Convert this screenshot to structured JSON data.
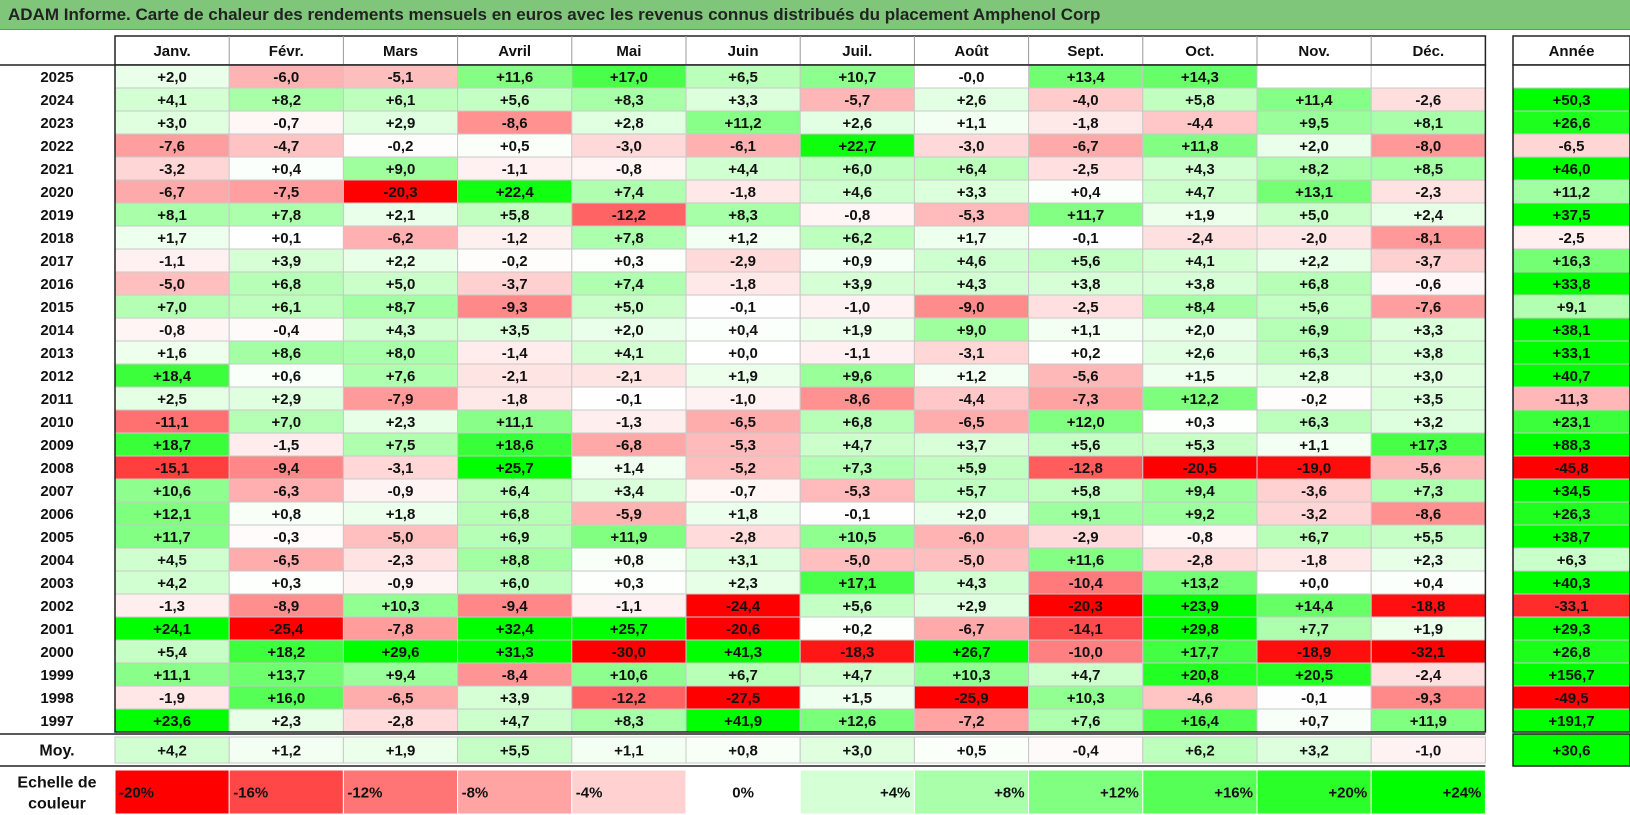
{
  "title": "ADAM Informe. Carte de chaleur des rendements mensuels en euros avec les revenus connus distribués du placement Amphenol Corp",
  "chart_data": {
    "type": "heatmap",
    "columns": [
      "Janv.",
      "Févr.",
      "Mars",
      "Avril",
      "Mai",
      "Juin",
      "Juil.",
      "Août",
      "Sept.",
      "Oct.",
      "Nov.",
      "Déc."
    ],
    "year_header": "Année",
    "rows": [
      {
        "year": "2025",
        "values": [
          "+2,0",
          "-6,0",
          "-5,1",
          "+11,6",
          "+17,0",
          "+6,5",
          "+10,7",
          "-0,0",
          "+13,4",
          "+14,3",
          "",
          ""
        ],
        "annual": ""
      },
      {
        "year": "2024",
        "values": [
          "+4,1",
          "+8,2",
          "+6,1",
          "+5,6",
          "+8,3",
          "+3,3",
          "-5,7",
          "+2,6",
          "-4,0",
          "+5,8",
          "+11,4",
          "-2,6"
        ],
        "annual": "+50,3"
      },
      {
        "year": "2023",
        "values": [
          "+3,0",
          "-0,7",
          "+2,9",
          "-8,6",
          "+2,8",
          "+11,2",
          "+2,6",
          "+1,1",
          "-1,8",
          "-4,4",
          "+9,5",
          "+8,1"
        ],
        "annual": "+26,6"
      },
      {
        "year": "2022",
        "values": [
          "-7,6",
          "-4,7",
          "-0,2",
          "+0,5",
          "-3,0",
          "-6,1",
          "+22,7",
          "-3,0",
          "-6,7",
          "+11,8",
          "+2,0",
          "-8,0"
        ],
        "annual": "-6,5"
      },
      {
        "year": "2021",
        "values": [
          "-3,2",
          "+0,4",
          "+9,0",
          "-1,1",
          "-0,8",
          "+4,4",
          "+6,0",
          "+6,4",
          "-2,5",
          "+4,3",
          "+8,2",
          "+8,5"
        ],
        "annual": "+46,0"
      },
      {
        "year": "2020",
        "values": [
          "-6,7",
          "-7,5",
          "-20,3",
          "+22,4",
          "+7,4",
          "-1,8",
          "+4,6",
          "+3,3",
          "+0,4",
          "+4,7",
          "+13,1",
          "-2,3"
        ],
        "annual": "+11,2"
      },
      {
        "year": "2019",
        "values": [
          "+8,1",
          "+7,8",
          "+2,1",
          "+5,8",
          "-12,2",
          "+8,3",
          "-0,8",
          "-5,3",
          "+11,7",
          "+1,9",
          "+5,0",
          "+2,4"
        ],
        "annual": "+37,5"
      },
      {
        "year": "2018",
        "values": [
          "+1,7",
          "+0,1",
          "-6,2",
          "-1,2",
          "+7,8",
          "+1,2",
          "+6,2",
          "+1,7",
          "-0,1",
          "-2,4",
          "-2,0",
          "-8,1"
        ],
        "annual": "-2,5"
      },
      {
        "year": "2017",
        "values": [
          "-1,1",
          "+3,9",
          "+2,2",
          "-0,2",
          "+0,3",
          "-2,9",
          "+0,9",
          "+4,6",
          "+5,6",
          "+4,1",
          "+2,2",
          "-3,7"
        ],
        "annual": "+16,3"
      },
      {
        "year": "2016",
        "values": [
          "-5,0",
          "+6,8",
          "+5,0",
          "-3,7",
          "+7,4",
          "-1,8",
          "+3,9",
          "+4,3",
          "+3,8",
          "+3,8",
          "+6,8",
          "-0,6"
        ],
        "annual": "+33,8"
      },
      {
        "year": "2015",
        "values": [
          "+7,0",
          "+6,1",
          "+8,7",
          "-9,3",
          "+5,0",
          "-0,1",
          "-1,0",
          "-9,0",
          "-2,5",
          "+8,4",
          "+5,6",
          "-7,6"
        ],
        "annual": "+9,1"
      },
      {
        "year": "2014",
        "values": [
          "-0,8",
          "-0,4",
          "+4,3",
          "+3,5",
          "+2,0",
          "+0,4",
          "+1,9",
          "+9,0",
          "+1,1",
          "+2,0",
          "+6,9",
          "+3,3"
        ],
        "annual": "+38,1"
      },
      {
        "year": "2013",
        "values": [
          "+1,6",
          "+8,6",
          "+8,0",
          "-1,4",
          "+4,1",
          "+0,0",
          "-1,1",
          "-3,1",
          "+0,2",
          "+2,6",
          "+6,3",
          "+3,8"
        ],
        "annual": "+33,1"
      },
      {
        "year": "2012",
        "values": [
          "+18,4",
          "+0,6",
          "+7,6",
          "-2,1",
          "-2,1",
          "+1,9",
          "+9,6",
          "+1,2",
          "-5,6",
          "+1,5",
          "+2,8",
          "+3,0"
        ],
        "annual": "+40,7"
      },
      {
        "year": "2011",
        "values": [
          "+2,5",
          "+2,9",
          "-7,9",
          "-1,8",
          "-0,1",
          "-1,0",
          "-8,6",
          "-4,4",
          "-7,3",
          "+12,2",
          "-0,2",
          "+3,5"
        ],
        "annual": "-11,3"
      },
      {
        "year": "2010",
        "values": [
          "-11,1",
          "+7,0",
          "+2,3",
          "+11,1",
          "-1,3",
          "-6,5",
          "+6,8",
          "-6,5",
          "+12,0",
          "+0,3",
          "+6,3",
          "+3,2"
        ],
        "annual": "+23,1"
      },
      {
        "year": "2009",
        "values": [
          "+18,7",
          "-1,5",
          "+7,5",
          "+18,6",
          "-6,8",
          "-5,3",
          "+4,7",
          "+3,7",
          "+5,6",
          "+5,3",
          "+1,1",
          "+17,3"
        ],
        "annual": "+88,3"
      },
      {
        "year": "2008",
        "values": [
          "-15,1",
          "-9,4",
          "-3,1",
          "+25,7",
          "+1,4",
          "-5,2",
          "+7,3",
          "+5,9",
          "-12,8",
          "-20,5",
          "-19,0",
          "-5,6"
        ],
        "annual": "-45,8"
      },
      {
        "year": "2007",
        "values": [
          "+10,6",
          "-6,3",
          "-0,9",
          "+6,4",
          "+3,4",
          "-0,7",
          "-5,3",
          "+5,7",
          "+5,8",
          "+9,4",
          "-3,6",
          "+7,3"
        ],
        "annual": "+34,5"
      },
      {
        "year": "2006",
        "values": [
          "+12,1",
          "+0,8",
          "+1,8",
          "+6,8",
          "-5,9",
          "+1,8",
          "-0,1",
          "+2,0",
          "+9,1",
          "+9,2",
          "-3,2",
          "-8,6"
        ],
        "annual": "+26,3"
      },
      {
        "year": "2005",
        "values": [
          "+11,7",
          "-0,3",
          "-5,0",
          "+6,9",
          "+11,9",
          "-2,8",
          "+10,5",
          "-6,0",
          "-2,9",
          "-0,8",
          "+6,7",
          "+5,5"
        ],
        "annual": "+38,7"
      },
      {
        "year": "2004",
        "values": [
          "+4,5",
          "-6,5",
          "-2,3",
          "+8,8",
          "+0,8",
          "+3,1",
          "-5,0",
          "-5,0",
          "+11,6",
          "-2,8",
          "-1,8",
          "+2,3"
        ],
        "annual": "+6,3"
      },
      {
        "year": "2003",
        "values": [
          "+4,2",
          "+0,3",
          "-0,9",
          "+6,0",
          "+0,3",
          "+2,3",
          "+17,1",
          "+4,3",
          "-10,4",
          "+13,2",
          "+0,0",
          "+0,4"
        ],
        "annual": "+40,3"
      },
      {
        "year": "2002",
        "values": [
          "-1,3",
          "-8,9",
          "+10,3",
          "-9,4",
          "-1,1",
          "-24,4",
          "+5,6",
          "+2,9",
          "-20,3",
          "+23,9",
          "+14,4",
          "-18,8"
        ],
        "annual": "-33,1"
      },
      {
        "year": "2001",
        "values": [
          "+24,1",
          "-25,4",
          "-7,8",
          "+32,4",
          "+25,7",
          "-20,6",
          "+0,2",
          "-6,7",
          "-14,1",
          "+29,8",
          "+7,7",
          "+1,9"
        ],
        "annual": "+29,3"
      },
      {
        "year": "2000",
        "values": [
          "+5,4",
          "+18,2",
          "+29,6",
          "+31,3",
          "-30,0",
          "+41,3",
          "-18,3",
          "+26,7",
          "-10,0",
          "+17,7",
          "-18,9",
          "-32,1"
        ],
        "annual": "+26,8"
      },
      {
        "year": "1999",
        "values": [
          "+11,1",
          "+13,7",
          "+9,4",
          "-8,4",
          "+10,6",
          "+6,7",
          "+4,7",
          "+10,3",
          "+4,7",
          "+20,8",
          "+20,5",
          "-2,4"
        ],
        "annual": "+156,7"
      },
      {
        "year": "1998",
        "values": [
          "-1,9",
          "+16,0",
          "-6,5",
          "+3,9",
          "-12,2",
          "-27,5",
          "+1,5",
          "-25,9",
          "+10,3",
          "-4,6",
          "-0,1",
          "-9,3"
        ],
        "annual": "-49,5"
      },
      {
        "year": "1997",
        "values": [
          "+23,6",
          "+2,3",
          "-2,8",
          "+4,7",
          "+8,3",
          "+41,9",
          "+12,6",
          "-7,2",
          "+7,6",
          "+16,4",
          "+0,7",
          "+11,9"
        ],
        "annual": "+191,7"
      }
    ],
    "average": {
      "label": "Moy.",
      "values": [
        "+4,2",
        "+1,2",
        "+1,9",
        "+5,5",
        "+1,1",
        "+0,8",
        "+3,0",
        "+0,5",
        "-0,4",
        "+6,2",
        "+3,2",
        "-1,0"
      ],
      "annual": "+30,6"
    },
    "scale": {
      "label_line1": "Echelle de",
      "label_line2": "couleur",
      "steps": [
        {
          "label": "-20%",
          "value": -20
        },
        {
          "label": "-16%",
          "value": -16
        },
        {
          "label": "-12%",
          "value": -12
        },
        {
          "label": "-8%",
          "value": -8
        },
        {
          "label": "-4%",
          "value": -4
        },
        {
          "label": "0%",
          "value": 0
        },
        {
          "label": "+4%",
          "value": 4
        },
        {
          "label": "+8%",
          "value": 8
        },
        {
          "label": "+12%",
          "value": 12
        },
        {
          "label": "+16%",
          "value": 16
        },
        {
          "label": "+20%",
          "value": 20
        },
        {
          "label": "+24%",
          "value": 24
        }
      ]
    },
    "colors": {
      "negative_max": "#ff0000",
      "neutral": "#ffffff",
      "positive_max": "#00ff00",
      "title_bar": "#7fc67b"
    }
  }
}
